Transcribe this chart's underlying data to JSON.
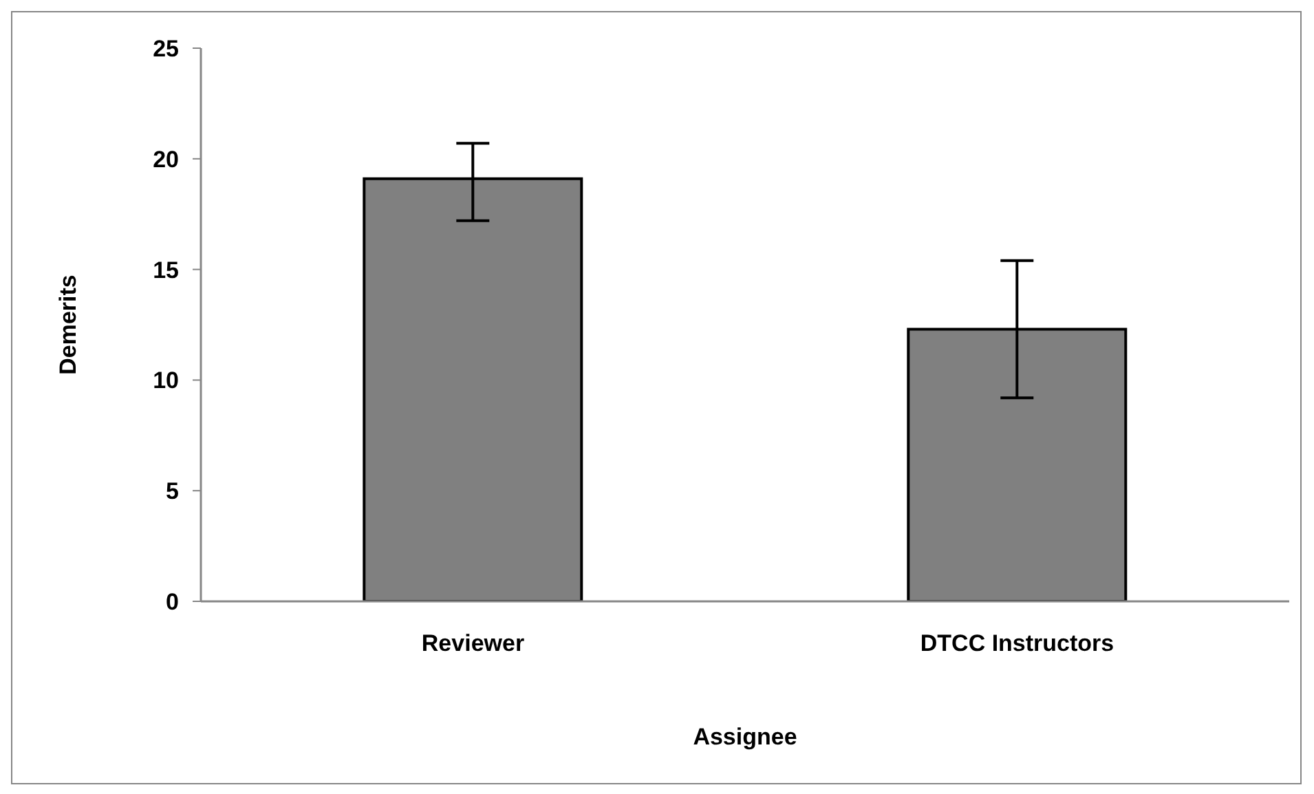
{
  "chart_data": {
    "type": "bar",
    "xlabel": "Assignee",
    "ylabel": "Demerits",
    "categories": [
      "Reviewer",
      "DTCC Instructors"
    ],
    "values": [
      19.1,
      12.3
    ],
    "errors": [
      [
        17.2,
        20.7
      ],
      [
        9.2,
        15.4
      ]
    ],
    "color": "#808080",
    "ylim": [
      0,
      25
    ],
    "yticks": [
      0,
      5,
      10,
      15,
      20,
      25
    ]
  }
}
